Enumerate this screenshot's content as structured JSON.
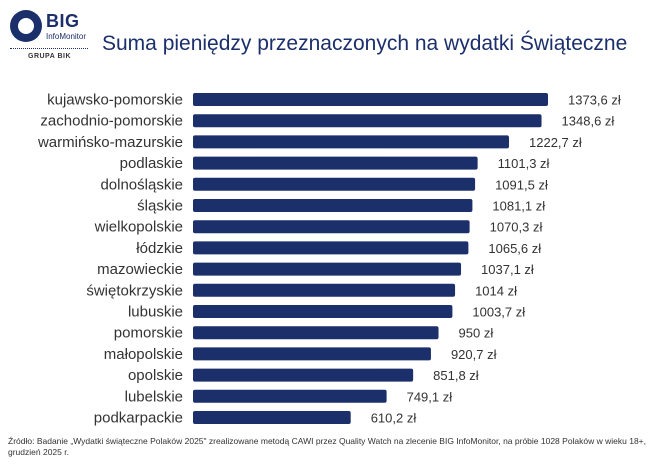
{
  "brand": {
    "name": "BIG",
    "sub": "InfoMonitor",
    "group": "GRUPA BIK",
    "color": "#1b2f6b"
  },
  "chart_data": {
    "type": "bar",
    "orientation": "horizontal",
    "title": "Suma pieniędzy przeznaczonych na wydatki Świąteczne",
    "unit": "zł",
    "bar_color": "#1b2f6b",
    "categories": [
      "kujawsko-pomorskie",
      "zachodnio-pomorskie",
      "warmińsko-mazurskie",
      "podlaskie",
      "dolnośląskie",
      "śląskie",
      "wielkopolskie",
      "łódzkie",
      "mazowieckie",
      "świętokrzyskie",
      "lubuskie",
      "pomorskie",
      "małopolskie",
      "opolskie",
      "lubelskie",
      "podkarpackie"
    ],
    "values": [
      1373.6,
      1348.6,
      1222.7,
      1101.3,
      1091.5,
      1081.1,
      1070.3,
      1065.6,
      1037.1,
      1014,
      1003.7,
      950,
      920.7,
      851.8,
      749.1,
      610.2
    ],
    "labels": [
      "1373,6 zł",
      "1348,6 zł",
      "1222,7 zł",
      "1101,3 zł",
      "1091,5 zł",
      "1081,1 zł",
      "1070,3 zł",
      "1065,6 zł",
      "1037,1 zł",
      "1014 zł",
      "1003,7 zł",
      "950 zł",
      "920,7 zł",
      "851,8 zł",
      "749,1 zł",
      "610,2 zł"
    ],
    "xlim": [
      0,
      1373.6
    ],
    "grid": false,
    "legend": "none"
  },
  "footnote": "Źródło: Badanie „Wydatki świąteczne Polaków 2025\" zrealizowane metodą CAWI przez Quality Watch na zlecenie BIG InfoMonitor, na próbie 1028 Polaków w wieku 18+, grudzień 2025 r."
}
